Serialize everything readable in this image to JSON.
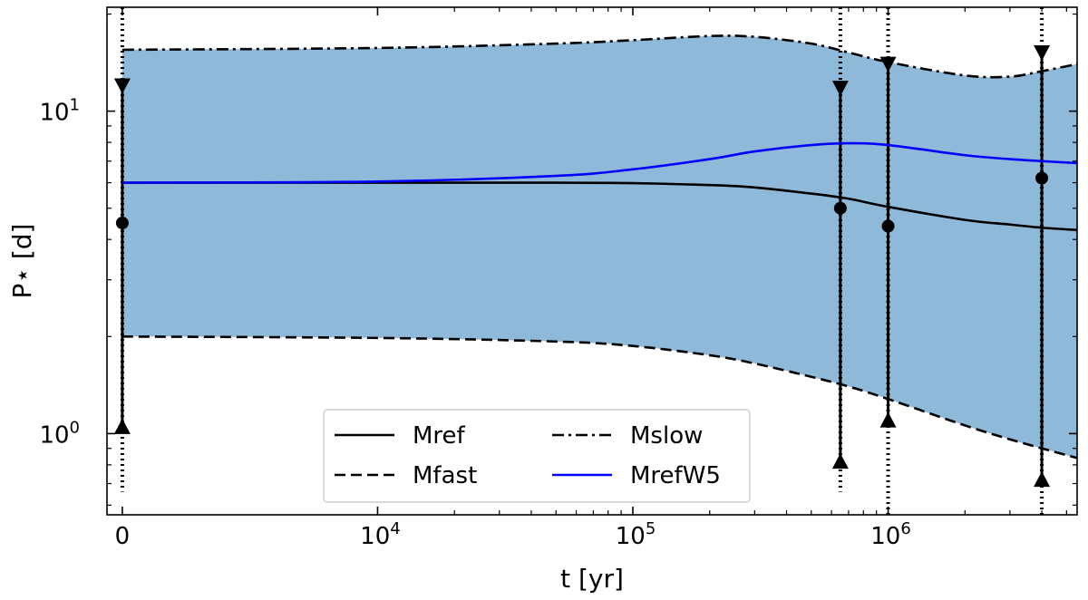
{
  "chart_data": {
    "type": "line",
    "xlabel": "t [yr]",
    "ylabel": "P⋆ [d]",
    "xscale": "symlog",
    "yscale": "log",
    "xlim": [
      -600,
      5500000
    ],
    "ylim": [
      0.56,
      21
    ],
    "x_ticks": [
      {
        "value": 0,
        "base": "0",
        "exp": ""
      },
      {
        "value": 10000,
        "base": "10",
        "exp": "4"
      },
      {
        "value": 100000,
        "base": "10",
        "exp": "5"
      },
      {
        "value": 1000000,
        "base": "10",
        "exp": "6"
      }
    ],
    "y_ticks": [
      {
        "value": 1,
        "base": "10",
        "exp": "0"
      },
      {
        "value": 10,
        "base": "10",
        "exp": "1"
      }
    ],
    "band": {
      "description": "shaded region between Mfast and Mslow",
      "color": "#8fb9d8"
    },
    "series": [
      {
        "name": "Mslow",
        "style": "dashdot",
        "color": "#000000",
        "x": [
          0,
          10000,
          50000,
          100000,
          200000,
          300000,
          500000,
          700000,
          1000000,
          2000000,
          3000000,
          4000000,
          5500000
        ],
        "y": [
          15.5,
          15.7,
          16.2,
          16.6,
          17.1,
          17.0,
          16.2,
          15.2,
          14.2,
          12.9,
          12.8,
          13.3,
          14.0
        ]
      },
      {
        "name": "Mfast",
        "style": "dashed",
        "color": "#000000",
        "x": [
          0,
          10000,
          50000,
          100000,
          200000,
          300000,
          500000,
          700000,
          1000000,
          2000000,
          3000000,
          4000000,
          5500000
        ],
        "y": [
          2.0,
          1.98,
          1.93,
          1.87,
          1.75,
          1.65,
          1.5,
          1.4,
          1.28,
          1.06,
          0.96,
          0.9,
          0.84
        ]
      },
      {
        "name": "Mref",
        "style": "solid",
        "color": "#000000",
        "x": [
          0,
          10000,
          50000,
          100000,
          200000,
          300000,
          500000,
          700000,
          1000000,
          2000000,
          3000000,
          4000000,
          5500000
        ],
        "y": [
          6.0,
          6.0,
          6.0,
          5.98,
          5.9,
          5.8,
          5.55,
          5.35,
          5.05,
          4.6,
          4.45,
          4.35,
          4.28
        ]
      },
      {
        "name": "MrefW5",
        "style": "solid",
        "color": "#0000ff",
        "x": [
          0,
          10000,
          50000,
          100000,
          200000,
          300000,
          500000,
          700000,
          1000000,
          2000000,
          3000000,
          4000000,
          5500000
        ],
        "y": [
          6.0,
          6.05,
          6.3,
          6.6,
          7.1,
          7.5,
          7.85,
          7.95,
          7.85,
          7.3,
          7.1,
          7.0,
          6.9
        ]
      }
    ],
    "observations": [
      {
        "x": 0,
        "median": 4.5,
        "upper": 12.0,
        "lower": 1.05,
        "whisker_top": 21,
        "whisker_bottom": 0.66
      },
      {
        "x": 650000,
        "median": 5.0,
        "upper": 11.8,
        "lower": 0.82,
        "whisker_top": 21,
        "whisker_bottom": 0.66
      },
      {
        "x": 1000000,
        "median": 4.4,
        "upper": 14.0,
        "lower": 1.1,
        "whisker_top": 21,
        "whisker_bottom": 0.56
      },
      {
        "x": 4000000,
        "median": 6.2,
        "upper": 15.2,
        "lower": 0.72,
        "whisker_top": 21,
        "whisker_bottom": 0.56
      }
    ],
    "legend": {
      "position": "bottom-center",
      "ncol": 2,
      "entries": [
        {
          "label": "Mref",
          "style": "solid",
          "color": "#000000"
        },
        {
          "label": "Mslow",
          "style": "dashdot",
          "color": "#000000"
        },
        {
          "label": "Mfast",
          "style": "dashed",
          "color": "#000000"
        },
        {
          "label": "MrefW5",
          "style": "solid",
          "color": "#0000ff"
        }
      ]
    }
  }
}
